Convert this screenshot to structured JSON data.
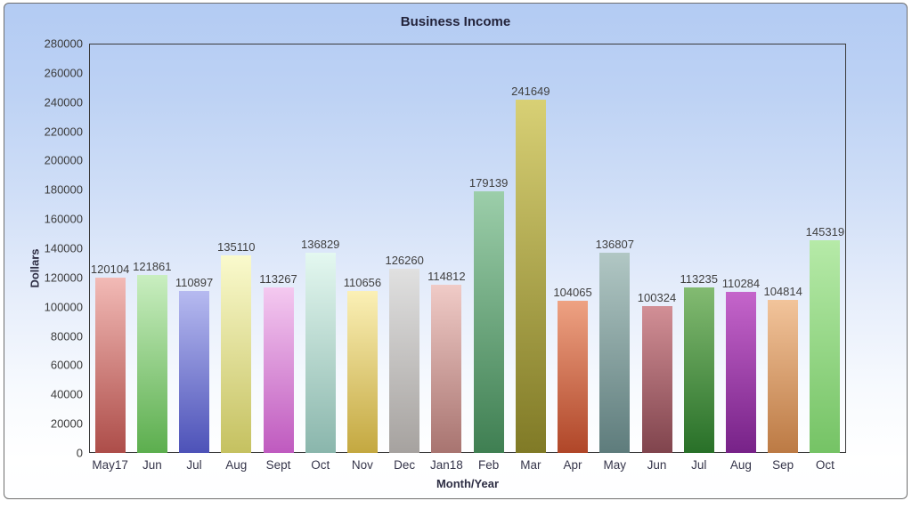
{
  "title": "Business Income",
  "axes": {
    "y_title": "Dollars",
    "x_title": "Month/Year"
  },
  "colors": {
    "card_background_top": "#b3cbf3",
    "card_background_bottom": "#ffffff",
    "card_border": "#6e6e6e",
    "plot_border": "#3a3a3a",
    "title_text": "#23233a",
    "tick_text": "#3b3b3b",
    "value_label_text": "#3f3f3f"
  },
  "chart_data": {
    "type": "bar",
    "title": "Business Income",
    "xlabel": "Month/Year",
    "ylabel": "Dollars",
    "categories": [
      "May17",
      "Jun",
      "Jul",
      "Aug",
      "Sept",
      "Oct",
      "Nov",
      "Dec",
      "Jan18",
      "Feb",
      "Mar",
      "Apr",
      "May",
      "Jun",
      "Jul",
      "Aug",
      "Sep",
      "Oct"
    ],
    "values": [
      120104,
      121861,
      110897,
      135110,
      113267,
      136829,
      110656,
      126260,
      114812,
      179139,
      241649,
      104065,
      136807,
      100324,
      113235,
      110284,
      104814,
      145319
    ],
    "ylim": [
      0,
      280000
    ],
    "yticks": [
      0,
      20000,
      40000,
      60000,
      80000,
      100000,
      120000,
      140000,
      160000,
      180000,
      200000,
      220000,
      240000,
      260000,
      280000
    ],
    "grid": false,
    "legend": null,
    "value_labels_shown": true,
    "bar_gradients": [
      {
        "top": "#f2bab6",
        "bottom": "#ad4d49"
      },
      {
        "top": "#c9eec0",
        "bottom": "#5cae4e"
      },
      {
        "top": "#b6baf0",
        "bottom": "#4d52b8"
      },
      {
        "top": "#fafacd",
        "bottom": "#c5c160"
      },
      {
        "top": "#f4c9f0",
        "bottom": "#bf5abf"
      },
      {
        "top": "#e4f8f0",
        "bottom": "#8ab6ac"
      },
      {
        "top": "#fbf0b6",
        "bottom": "#c4a840"
      },
      {
        "top": "#e0e0e0",
        "bottom": "#a6a29f"
      },
      {
        "top": "#f0cbc7",
        "bottom": "#a87470"
      },
      {
        "top": "#9cceaa",
        "bottom": "#3f7f52"
      },
      {
        "top": "#d8d075",
        "bottom": "#807a26"
      },
      {
        "top": "#eea283",
        "bottom": "#b04628"
      },
      {
        "top": "#b1c7c4",
        "bottom": "#5e7c7c"
      },
      {
        "top": "#d28f96",
        "bottom": "#80444d"
      },
      {
        "top": "#83bb72",
        "bottom": "#287028"
      },
      {
        "top": "#c565cb",
        "bottom": "#772288"
      },
      {
        "top": "#f2c49b",
        "bottom": "#bc7a44"
      },
      {
        "top": "#b6eaa8",
        "bottom": "#75c365"
      }
    ]
  }
}
